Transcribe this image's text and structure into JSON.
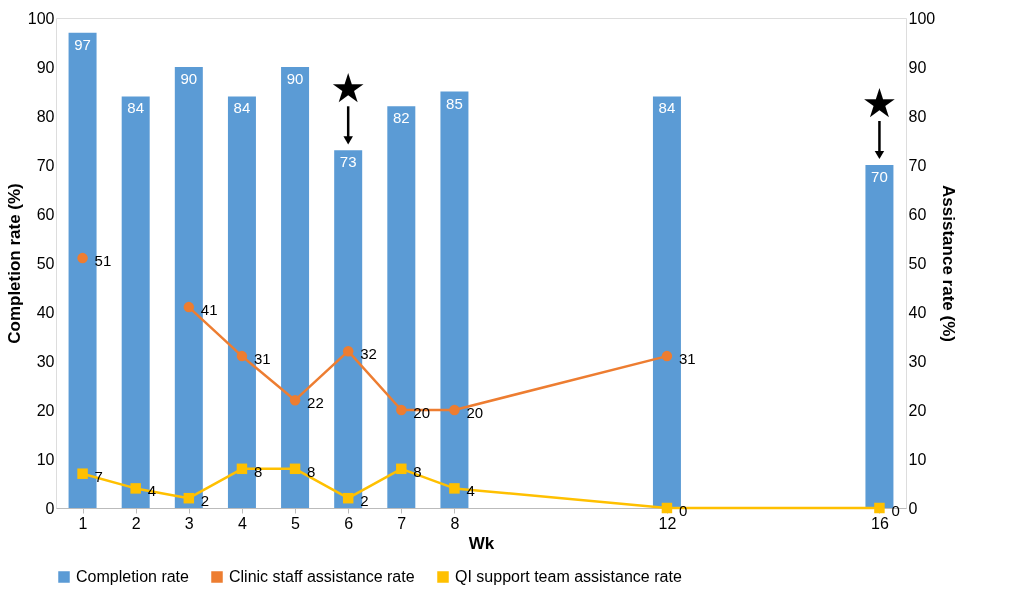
{
  "chart_data": {
    "type": "bar",
    "xlabel": "Wk",
    "ylabel": "Completion rate (%)",
    "y2label": "Assistance rate (%)",
    "x": [
      1,
      2,
      3,
      4,
      5,
      6,
      7,
      8,
      12,
      16
    ],
    "xlim": [
      0.5,
      16.5
    ],
    "xticks": [
      1,
      2,
      3,
      4,
      5,
      6,
      7,
      8,
      12,
      16
    ],
    "ylim": [
      0,
      100
    ],
    "yticks": [
      0,
      10,
      20,
      30,
      40,
      50,
      60,
      70,
      80,
      90,
      100
    ],
    "y2lim": [
      0,
      100
    ],
    "y2ticks": [
      0,
      10,
      20,
      30,
      40,
      50,
      60,
      70,
      80,
      90,
      100
    ],
    "series": [
      {
        "name": "Completion rate",
        "color": "#5b9bd5",
        "values": [
          97,
          84,
          90,
          84,
          90,
          73,
          82,
          85,
          84,
          70
        ]
      },
      {
        "name": "Clinic staff assistance rate",
        "type": "line",
        "axis": "y2",
        "marker": "circle",
        "color": "#ed7d31",
        "values": [
          51,
          null,
          41,
          31,
          22,
          32,
          20,
          20,
          31,
          null
        ]
      },
      {
        "name": "QI support team assistance rate",
        "type": "line",
        "axis": "y2",
        "marker": "square",
        "color": "#ffc000",
        "values": [
          7,
          4,
          2,
          8,
          8,
          2,
          8,
          4,
          0,
          0
        ]
      }
    ],
    "annotations": [
      {
        "text": "★",
        "x": 6,
        "y": 73
      },
      {
        "text": "★",
        "x": 16,
        "y": 70
      }
    ],
    "data_labels": true,
    "grid": false,
    "legend": "bottom"
  }
}
